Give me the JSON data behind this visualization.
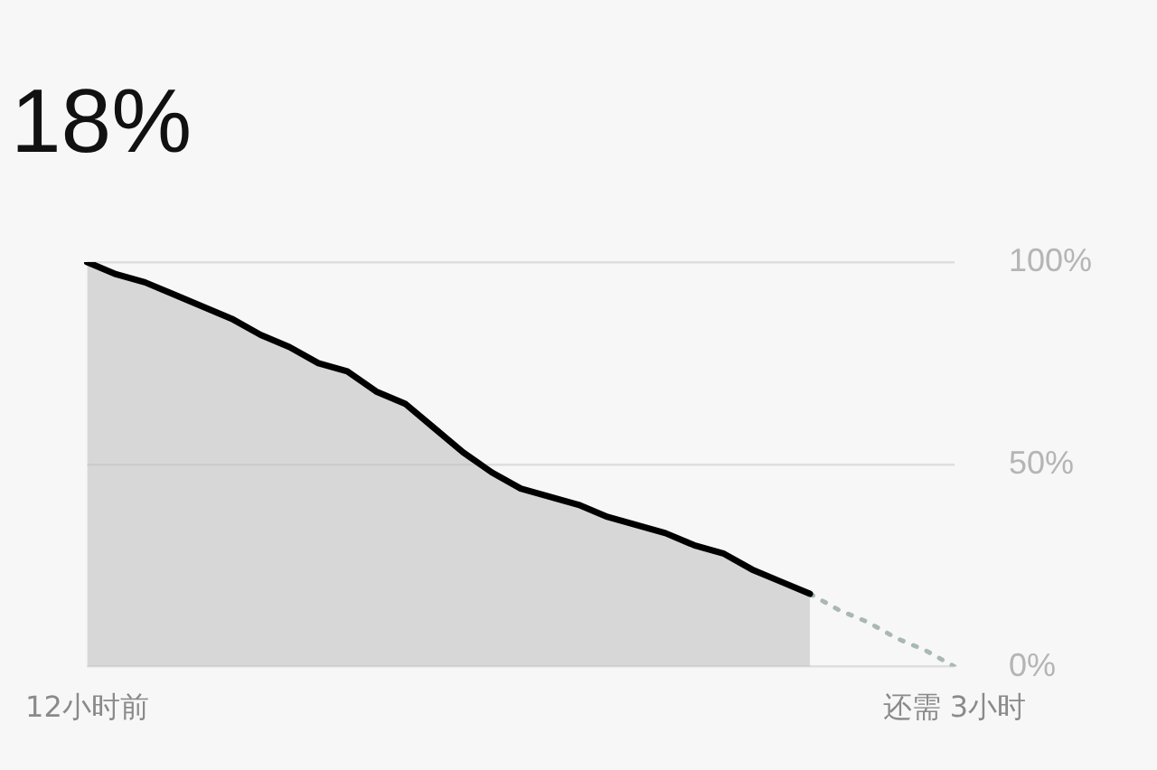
{
  "chart_data": {
    "type": "area",
    "title": "18%",
    "categories": [
      "12小时前",
      null,
      null,
      null,
      null,
      null,
      null,
      null,
      null,
      null,
      null,
      null,
      null,
      null,
      null,
      null,
      null,
      null,
      null,
      null,
      null,
      null,
      null,
      null,
      null,
      null,
      null,
      null,
      null,
      null,
      "还需 3小时"
    ],
    "series": [
      {
        "color": "#000000",
        "values": [
          100,
          97,
          95,
          92,
          89,
          86,
          82,
          79,
          75,
          73,
          68,
          65,
          59,
          53,
          48,
          44,
          42,
          40,
          37,
          35,
          33,
          30,
          28,
          24,
          21,
          18,
          null,
          null,
          null,
          null,
          null
        ]
      },
      {
        "type": "line",
        "color": "#a9b8b4",
        "line_style": "dotted",
        "values": [
          null,
          null,
          null,
          null,
          null,
          null,
          null,
          null,
          null,
          null,
          null,
          null,
          null,
          null,
          null,
          null,
          null,
          null,
          null,
          null,
          null,
          null,
          null,
          null,
          null,
          18,
          14,
          11,
          7,
          4,
          0
        ]
      }
    ],
    "ylim": [
      0,
      100
    ],
    "yticks": [
      {
        "value": 0,
        "label": "0%"
      },
      {
        "value": 50,
        "label": "50%"
      },
      {
        "value": 100,
        "label": "100%"
      }
    ],
    "grid": "y",
    "legend": false
  }
}
